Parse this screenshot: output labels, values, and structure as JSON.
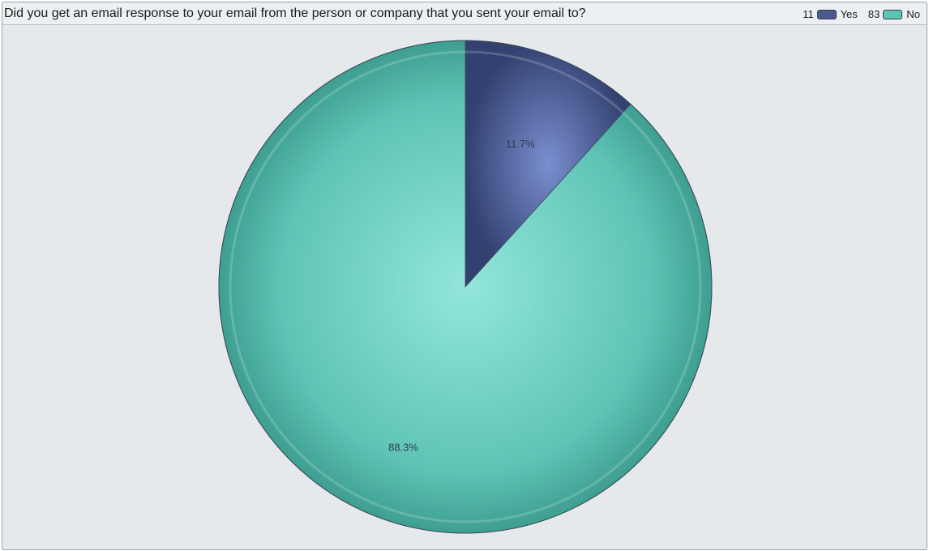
{
  "chart_data": {
    "type": "pie",
    "title": "Did you get an email response to your email from the person or company that you sent your email to?",
    "slices": [
      {
        "name": "Yes",
        "count": 11,
        "value": 11.7,
        "label": "11.7%",
        "color": "#4a5a8e"
      },
      {
        "name": "No",
        "count": 83,
        "value": 88.3,
        "label": "88.3%",
        "color": "#5cc4b4"
      }
    ],
    "legend_placement": "top-right"
  },
  "legend": [
    {
      "count": "11",
      "name": "Yes",
      "color": "#4a5a8e"
    },
    {
      "count": "83",
      "name": "No",
      "color": "#5cc4b4"
    }
  ]
}
